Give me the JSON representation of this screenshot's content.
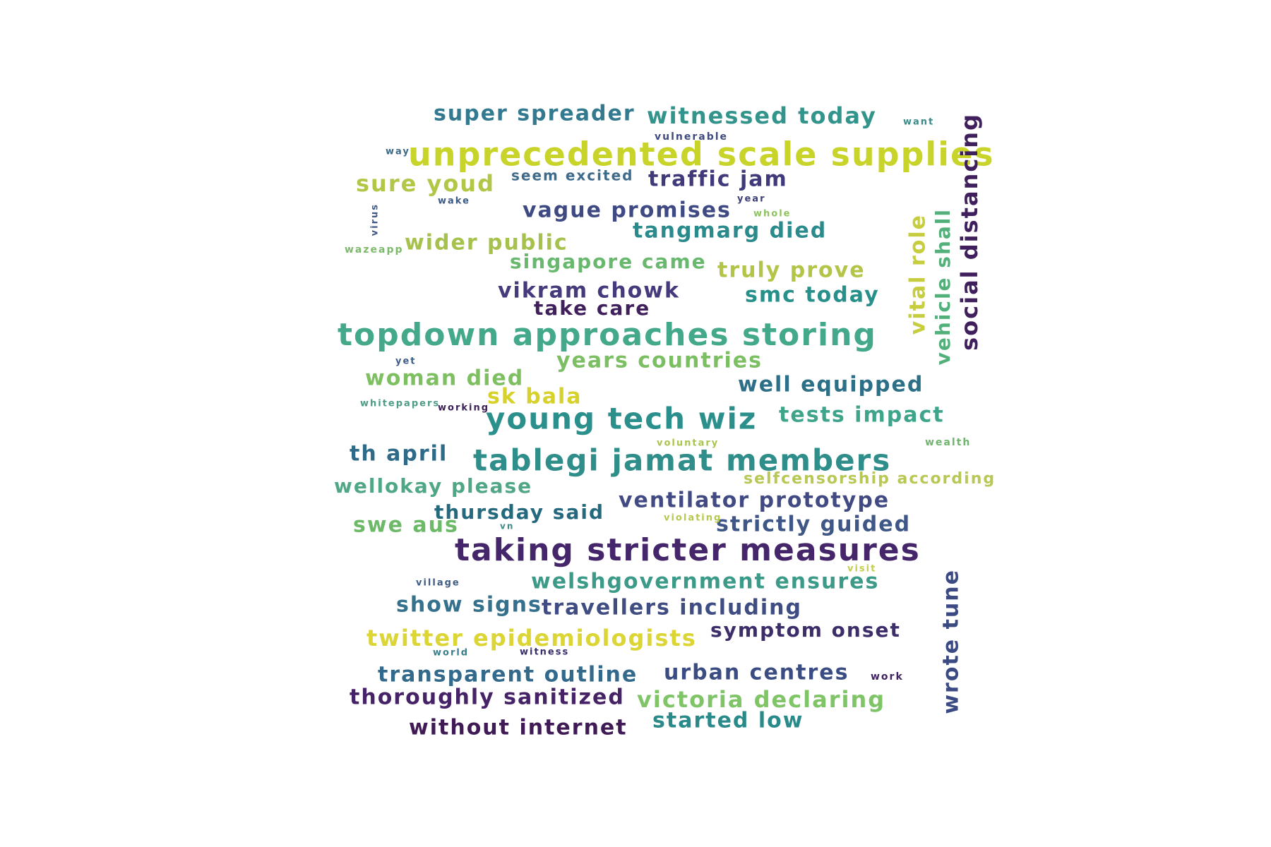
{
  "words": [
    {
      "text": "unprecedented scale supplies",
      "color": "#c8d42a"
    },
    {
      "text": "topdown approaches storing",
      "color": "#43a98a"
    },
    {
      "text": "taking stricter measures",
      "color": "#45266b"
    },
    {
      "text": "tablegi jamat members",
      "color": "#2f8d8a"
    },
    {
      "text": "young tech wiz",
      "color": "#2b8f8c"
    },
    {
      "text": "super spreader",
      "color": "#33798f"
    },
    {
      "text": "witnessed today",
      "color": "#33948c"
    },
    {
      "text": "traffic jam",
      "color": "#403a7a"
    },
    {
      "text": "sure youd",
      "color": "#b2c748"
    },
    {
      "text": "seem excited",
      "color": "#3e6a8b"
    },
    {
      "text": "vague promises",
      "color": "#3f4a83"
    },
    {
      "text": "tangmarg died",
      "color": "#2a8a8c"
    },
    {
      "text": "wider public",
      "color": "#a6c24c"
    },
    {
      "text": "singapore came",
      "color": "#68b96e"
    },
    {
      "text": "truly prove",
      "color": "#b4c446"
    },
    {
      "text": "vikram chowk",
      "color": "#463a7c"
    },
    {
      "text": "smc today",
      "color": "#27908a"
    },
    {
      "text": "take care",
      "color": "#3f1f5c"
    },
    {
      "text": "years countries",
      "color": "#7cbf63"
    },
    {
      "text": "woman died",
      "color": "#7ebf62"
    },
    {
      "text": "well equipped",
      "color": "#2d6f87"
    },
    {
      "text": "sk bala",
      "color": "#d6d22a"
    },
    {
      "text": "tests impact",
      "color": "#3ea58b"
    },
    {
      "text": "th april",
      "color": "#2f6b88"
    },
    {
      "text": "wellokay please",
      "color": "#4fa785"
    },
    {
      "text": "selfcensorship according",
      "color": "#b9c854"
    },
    {
      "text": "ventilator prototype",
      "color": "#414a82"
    },
    {
      "text": "thursday said",
      "color": "#24697d"
    },
    {
      "text": "swe aus",
      "color": "#6cba68"
    },
    {
      "text": "strictly guided",
      "color": "#3f5787"
    },
    {
      "text": "welshgovernment ensures",
      "color": "#3c9b88"
    },
    {
      "text": "show signs",
      "color": "#35718c"
    },
    {
      "text": "travellers including",
      "color": "#3f4d83"
    },
    {
      "text": "twitter epidemiologists",
      "color": "#dcd536"
    },
    {
      "text": "symptom onset",
      "color": "#3d2d6a"
    },
    {
      "text": "transparent outline",
      "color": "#336a8c"
    },
    {
      "text": "urban centres",
      "color": "#3b4c83"
    },
    {
      "text": "thoroughly sanitized",
      "color": "#462266"
    },
    {
      "text": "victoria declaring",
      "color": "#7fc467"
    },
    {
      "text": "started low",
      "color": "#2a8a8a"
    },
    {
      "text": "without internet",
      "color": "#3f1a55"
    },
    {
      "text": "social distancing",
      "color": "#3f1f5c"
    },
    {
      "text": "vehicle shall",
      "color": "#53b07b"
    },
    {
      "text": "vital role",
      "color": "#c6cd3e"
    },
    {
      "text": "wrote tune",
      "color": "#3c4a83"
    },
    {
      "text": "vulnerable",
      "color": "#3f4b7f"
    },
    {
      "text": "want",
      "color": "#3a8a8a"
    },
    {
      "text": "way",
      "color": "#3d6a88"
    },
    {
      "text": "wake",
      "color": "#3c5a86"
    },
    {
      "text": "virus",
      "color": "#3f5787"
    },
    {
      "text": "wazeapp",
      "color": "#7cba6a"
    },
    {
      "text": "year",
      "color": "#3d3f78"
    },
    {
      "text": "whole",
      "color": "#8ec25e"
    },
    {
      "text": "yet",
      "color": "#3e5d89"
    },
    {
      "text": "whitepapers",
      "color": "#4e9b86"
    },
    {
      "text": "working",
      "color": "#3b1f56"
    },
    {
      "text": "voluntary",
      "color": "#a9c54c"
    },
    {
      "text": "wealth",
      "color": "#70b46e"
    },
    {
      "text": "violating",
      "color": "#b7c84e"
    },
    {
      "text": "vn",
      "color": "#3f8a88"
    },
    {
      "text": "visit",
      "color": "#c6cc4e"
    },
    {
      "text": "village",
      "color": "#3f5c83"
    },
    {
      "text": "world",
      "color": "#3c7f8c"
    },
    {
      "text": "witness",
      "color": "#3a2f6c"
    },
    {
      "text": "work",
      "color": "#3f2461"
    }
  ]
}
